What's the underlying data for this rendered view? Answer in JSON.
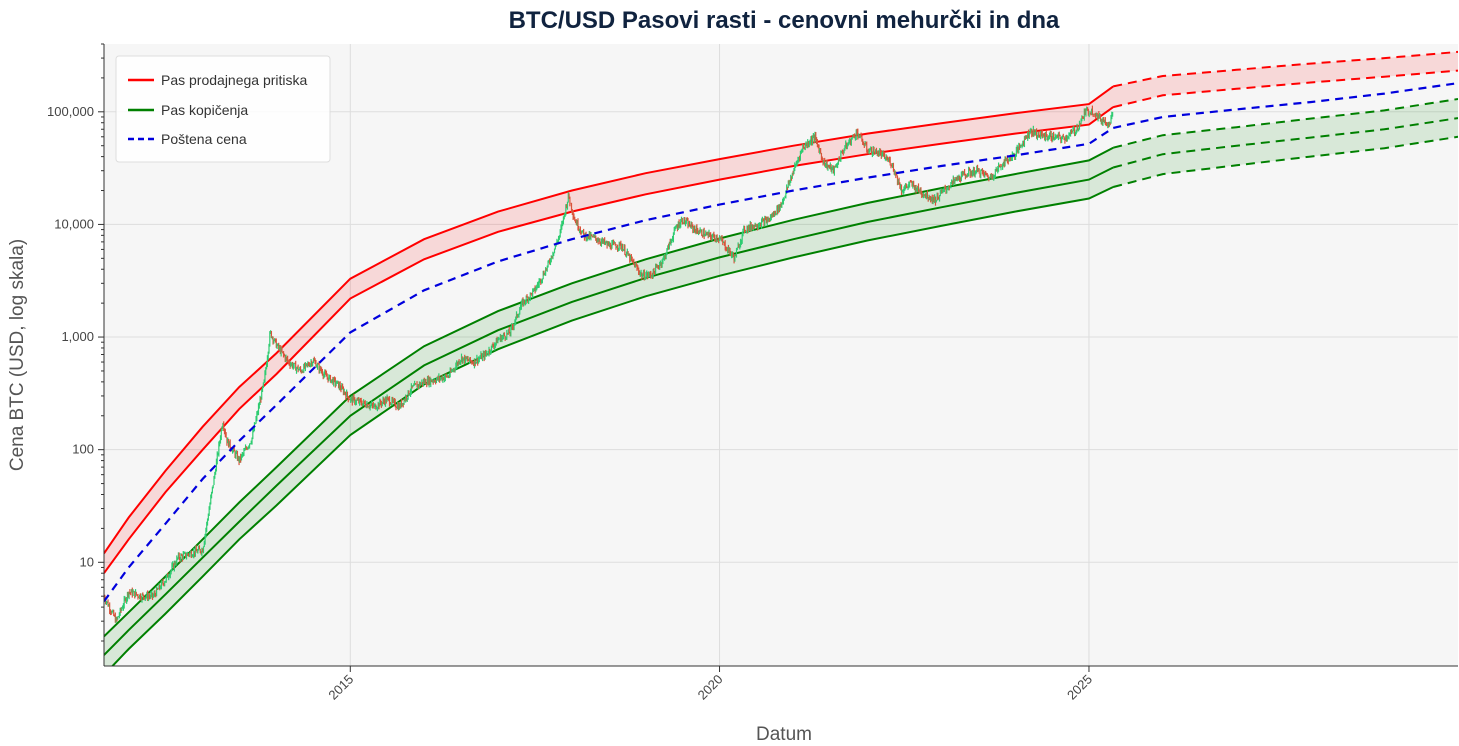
{
  "chart_data": {
    "type": "line",
    "title": "BTC/USD Pasovi rasti - cenovni mehurčki in dna",
    "xlabel": "Datum",
    "ylabel": "Cena BTC (USD, log skala)",
    "xlim": [
      "2011-09-01",
      "2029-12-31"
    ],
    "ylim": [
      1.2,
      400000
    ],
    "yscale": "log",
    "x_ticks": [
      "2015",
      "2020",
      "2025"
    ],
    "x_tick_values": [
      "2015-01-01",
      "2020-01-01",
      "2025-01-01"
    ],
    "y_ticks": [
      "10",
      "100",
      "1,000",
      "10,000",
      "100,000"
    ],
    "y_tick_values": [
      10,
      100,
      1000,
      10000,
      100000
    ],
    "grid": true,
    "legend_position": "top-left",
    "projection_start": "2025-05-01",
    "legend": [
      {
        "label": "Pas prodajnega pritiska",
        "color": "#ff0000",
        "style": "solid"
      },
      {
        "label": "Pas kopičenja",
        "color": "#008000",
        "style": "solid"
      },
      {
        "label": "Poštena cena",
        "color": "#0000dd",
        "style": "dashed"
      }
    ],
    "bands": [
      {
        "name": "Pas prodajnega pritiska",
        "color": "#ff0000",
        "fill": "#ff0000",
        "x": [
          "2011-09-01",
          "2012-01-01",
          "2012-07-01",
          "2013-01-01",
          "2013-07-01",
          "2014-01-01",
          "2015-01-01",
          "2016-01-01",
          "2017-01-01",
          "2018-01-01",
          "2019-01-01",
          "2020-01-01",
          "2021-01-01",
          "2022-01-01",
          "2023-01-01",
          "2024-01-01",
          "2025-01-01",
          "2025-05-01",
          "2026-01-01",
          "2027-01-01",
          "2028-01-01",
          "2029-01-01",
          "2029-12-31"
        ],
        "upper": [
          12,
          25,
          65,
          160,
          360,
          720,
          3300,
          7400,
          13000,
          20000,
          28500,
          38000,
          50000,
          64000,
          79000,
          97000,
          117000,
          168000,
          208000,
          236000,
          268000,
          300000,
          340000
        ],
        "lower": [
          8,
          16,
          42,
          100,
          230,
          470,
          2200,
          4900,
          8600,
          13000,
          18500,
          25000,
          33000,
          42000,
          52000,
          64000,
          77000,
          110000,
          140000,
          160000,
          182000,
          205000,
          232000
        ]
      },
      {
        "name": "Pas kopičenja",
        "color": "#008000",
        "fill": "#008000",
        "x": [
          "2011-09-01",
          "2012-01-01",
          "2012-07-01",
          "2013-01-01",
          "2013-07-01",
          "2014-01-01",
          "2015-01-01",
          "2016-01-01",
          "2017-01-01",
          "2018-01-01",
          "2019-01-01",
          "2020-01-01",
          "2021-01-01",
          "2022-01-01",
          "2023-01-01",
          "2024-01-01",
          "2025-01-01",
          "2025-05-01",
          "2026-01-01",
          "2027-01-01",
          "2028-01-01",
          "2029-01-01",
          "2029-12-31"
        ],
        "upper": [
          2.2,
          3.6,
          7.5,
          16,
          34,
          70,
          300,
          830,
          1700,
          3000,
          4900,
          7500,
          11000,
          15500,
          21000,
          28000,
          37000,
          48000,
          62000,
          73000,
          87000,
          103000,
          130000
        ],
        "mid": [
          1.5,
          2.5,
          5.2,
          11,
          23,
          48,
          200,
          560,
          1150,
          2050,
          3350,
          5100,
          7400,
          10500,
          14200,
          19000,
          25000,
          32000,
          42000,
          50000,
          59000,
          70000,
          88000
        ],
        "lower": [
          1.0,
          1.7,
          3.5,
          7.5,
          16,
          32,
          135,
          380,
          780,
          1400,
          2300,
          3500,
          5100,
          7200,
          9700,
          13000,
          17000,
          21500,
          28000,
          33500,
          40000,
          47500,
          60000
        ]
      }
    ],
    "series": [
      {
        "name": "Poštena cena",
        "color": "#0000dd",
        "style": "dashed",
        "x": [
          "2011-09-01",
          "2012-01-01",
          "2012-07-01",
          "2013-01-01",
          "2013-07-01",
          "2014-01-01",
          "2015-01-01",
          "2016-01-01",
          "2017-01-01",
          "2018-01-01",
          "2019-01-01",
          "2020-01-01",
          "2021-01-01",
          "2022-01-01",
          "2023-01-01",
          "2024-01-01",
          "2025-01-01",
          "2025-05-01",
          "2026-01-01",
          "2027-01-01",
          "2028-01-01",
          "2029-01-01",
          "2029-12-31"
        ],
        "values": [
          4.5,
          9,
          22,
          55,
          120,
          250,
          1100,
          2600,
          4700,
          7400,
          10900,
          15000,
          20000,
          26000,
          33000,
          41000,
          52000,
          72000,
          90000,
          105000,
          122000,
          145000,
          180000
        ]
      },
      {
        "name": "BTC",
        "color": "#2ecc71",
        "down_color": "#d9533a",
        "style": "candles",
        "x": [
          "2011-09-01",
          "2011-11-01",
          "2012-01-01",
          "2012-03-01",
          "2012-05-01",
          "2012-07-01",
          "2012-09-01",
          "2012-11-01",
          "2013-01-01",
          "2013-03-01",
          "2013-04-10",
          "2013-05-01",
          "2013-07-01",
          "2013-09-01",
          "2013-11-01",
          "2013-12-01",
          "2014-01-01",
          "2014-03-01",
          "2014-05-01",
          "2014-07-01",
          "2014-09-01",
          "2014-11-01",
          "2015-01-01",
          "2015-03-01",
          "2015-05-01",
          "2015-07-01",
          "2015-09-01",
          "2015-11-01",
          "2016-01-01",
          "2016-03-01",
          "2016-05-01",
          "2016-07-01",
          "2016-09-01",
          "2016-11-01",
          "2017-01-01",
          "2017-03-01",
          "2017-05-01",
          "2017-07-01",
          "2017-09-01",
          "2017-11-01",
          "2017-12-15",
          "2018-01-15",
          "2018-03-01",
          "2018-05-01",
          "2018-07-01",
          "2018-09-01",
          "2018-11-01",
          "2018-12-15",
          "2019-02-01",
          "2019-04-01",
          "2019-06-01",
          "2019-07-01",
          "2019-09-01",
          "2019-11-01",
          "2020-01-01",
          "2020-03-15",
          "2020-05-01",
          "2020-07-01",
          "2020-09-01",
          "2020-11-01",
          "2021-01-01",
          "2021-02-15",
          "2021-04-15",
          "2021-06-01",
          "2021-07-20",
          "2021-09-01",
          "2021-11-10",
          "2022-01-01",
          "2022-03-01",
          "2022-05-01",
          "2022-06-20",
          "2022-08-01",
          "2022-10-01",
          "2022-12-01",
          "2023-01-15",
          "2023-03-15",
          "2023-05-01",
          "2023-07-01",
          "2023-09-01",
          "2023-11-01",
          "2024-01-01",
          "2024-03-15",
          "2024-05-01",
          "2024-07-01",
          "2024-09-01",
          "2024-11-01",
          "2024-12-15",
          "2025-01-20",
          "2025-03-01",
          "2025-04-10",
          "2025-05-01"
        ],
        "values": [
          5,
          3,
          5.5,
          5,
          5,
          7,
          11,
          12,
          13,
          60,
          180,
          120,
          80,
          125,
          400,
          1100,
          850,
          600,
          500,
          620,
          450,
          380,
          280,
          260,
          240,
          280,
          240,
          350,
          400,
          420,
          450,
          650,
          600,
          700,
          950,
          1100,
          2000,
          2600,
          4200,
          8000,
          18000,
          11000,
          8000,
          7500,
          6500,
          6500,
          4500,
          3500,
          3600,
          5000,
          9500,
          11000,
          9000,
          8000,
          7500,
          5000,
          9000,
          10000,
          11000,
          15000,
          30000,
          48000,
          60000,
          35000,
          30000,
          45000,
          66000,
          46000,
          43000,
          35000,
          20000,
          23000,
          19000,
          16500,
          20000,
          25000,
          28000,
          30000,
          26000,
          35000,
          42000,
          68000,
          62000,
          60000,
          58000,
          70000,
          100000,
          102000,
          85000,
          80000,
          97000
        ]
      }
    ]
  }
}
